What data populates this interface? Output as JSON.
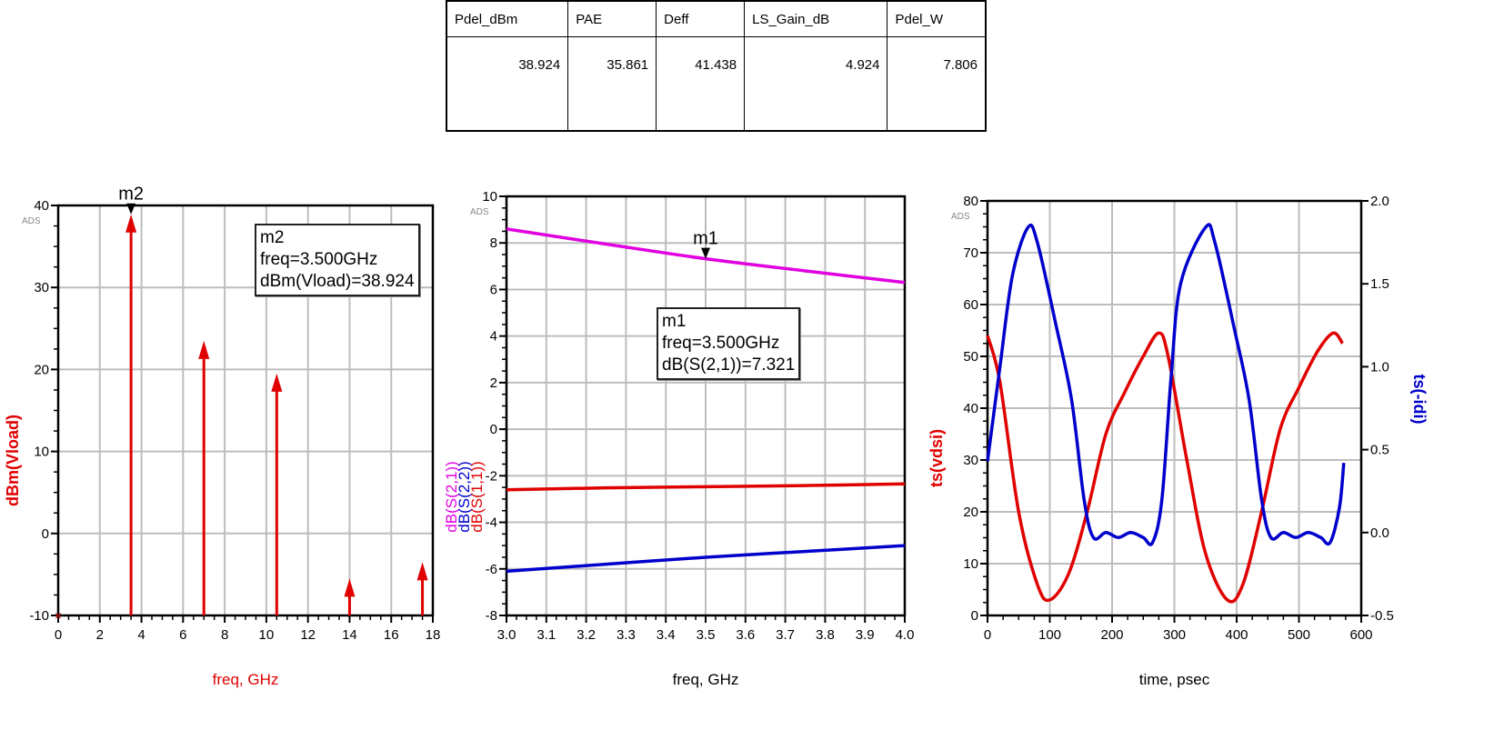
{
  "table": {
    "headers": [
      "Pdel_dBm",
      "PAE",
      "Deff",
      "LS_Gain_dB",
      "Pdel_W"
    ],
    "values": [
      "38.924",
      "35.861",
      "41.438",
      "4.924",
      "7.806"
    ]
  },
  "chart_data": [
    {
      "type": "stem",
      "watermark": "ADS",
      "xlabel": "freq, GHz",
      "ylabel": "dBm(Vload)",
      "label_color": "#e00000",
      "xlim": [
        0,
        18
      ],
      "ylim": [
        -10,
        40
      ],
      "xticks": [
        0,
        2,
        4,
        6,
        8,
        10,
        12,
        14,
        16,
        18
      ],
      "yticks": [
        -10,
        0,
        10,
        20,
        30,
        40
      ],
      "grid": true,
      "series": [
        {
          "color": "#e00000",
          "x": [
            0,
            3.5,
            7,
            10.5,
            14,
            17.5
          ],
          "y": [
            -10,
            38.924,
            23.5,
            19.5,
            -5.5,
            -3.5
          ]
        }
      ],
      "marker": {
        "name": "m2",
        "x": 3.5,
        "y": 38.924,
        "lines": [
          "m2",
          "freq=3.500GHz",
          "dBm(Vload)=38.924"
        ]
      }
    },
    {
      "type": "line",
      "watermark": "ADS",
      "xlabel": "freq, GHz",
      "ylabels": [
        {
          "text": "dB(S(2,1))",
          "color": "#e000e0"
        },
        {
          "text": "dB(S(2,2))",
          "color": "#0000cc"
        },
        {
          "text": "dB(S(1,1))",
          "color": "#e00000"
        }
      ],
      "xlim": [
        3.0,
        4.0
      ],
      "ylim": [
        -8,
        10
      ],
      "xticks": [
        "3.0",
        "3.1",
        "3.2",
        "3.3",
        "3.4",
        "3.5",
        "3.6",
        "3.7",
        "3.8",
        "3.9",
        "4.0"
      ],
      "yticks": [
        -8,
        -6,
        -4,
        -2,
        0,
        2,
        4,
        6,
        8,
        10
      ],
      "grid": true,
      "series": [
        {
          "name": "dB(S(2,1))",
          "color": "#e000e0",
          "x": [
            3.0,
            3.25,
            3.5,
            3.75,
            4.0
          ],
          "y": [
            8.6,
            7.95,
            7.321,
            6.8,
            6.3
          ]
        },
        {
          "name": "dB(S(2,2))",
          "color": "#0000cc",
          "x": [
            3.0,
            3.25,
            3.5,
            3.75,
            4.0
          ],
          "y": [
            -6.1,
            -5.8,
            -5.5,
            -5.25,
            -5.0
          ]
        },
        {
          "name": "dB(S(1,1))",
          "color": "#e00000",
          "x": [
            3.0,
            3.25,
            3.5,
            3.75,
            4.0
          ],
          "y": [
            -2.6,
            -2.52,
            -2.47,
            -2.42,
            -2.35
          ]
        }
      ],
      "marker": {
        "name": "m1",
        "x": 3.5,
        "y": 7.321,
        "lines": [
          "m1",
          "freq=3.500GHz",
          "dB(S(2,1))=7.321"
        ]
      }
    },
    {
      "type": "line",
      "watermark": "ADS",
      "xlabel": "time, psec",
      "ylabel": "ts(vdsi)",
      "ylabel_color": "#e00000",
      "y2label": "ts(-idi)",
      "y2label_color": "#0000cc",
      "xlim": [
        0,
        600
      ],
      "ylim": [
        0,
        80
      ],
      "y2lim": [
        -0.5,
        2.0
      ],
      "xticks": [
        0,
        100,
        200,
        300,
        400,
        500,
        600
      ],
      "yticks": [
        0,
        10,
        20,
        30,
        40,
        50,
        60,
        70,
        80
      ],
      "y2ticks": [
        "-0.5",
        "0.0",
        "0.5",
        "1.0",
        "1.5",
        "2.0"
      ],
      "grid": true,
      "series": [
        {
          "name": "ts(vdsi)",
          "axis": "left",
          "color": "#e00000",
          "x": [
            0,
            20,
            50,
            80,
            100,
            130,
            160,
            190,
            220,
            250,
            275,
            290,
            320,
            350,
            385,
            410,
            440,
            470,
            500,
            530,
            555,
            570
          ],
          "y": [
            54,
            45,
            20,
            6,
            3,
            8,
            20,
            35,
            43,
            50,
            54.5,
            50,
            30,
            12,
            3,
            6,
            20,
            36,
            44,
            51,
            54.5,
            52.5
          ]
        },
        {
          "name": "ts(-idi)",
          "axis": "right",
          "color": "#0000cc",
          "x": [
            0,
            20,
            40,
            65,
            80,
            110,
            135,
            155,
            170,
            190,
            210,
            230,
            250,
            265,
            280,
            295,
            310,
            350,
            365,
            395,
            420,
            440,
            455,
            475,
            495,
            515,
            535,
            550,
            565,
            572
          ],
          "y": [
            0.43,
            1.0,
            1.55,
            1.84,
            1.75,
            1.25,
            0.8,
            0.2,
            -0.03,
            0.0,
            -0.03,
            0.0,
            -0.03,
            -0.06,
            0.2,
            0.95,
            1.5,
            1.84,
            1.75,
            1.25,
            0.8,
            0.2,
            -0.03,
            0.0,
            -0.03,
            0.0,
            -0.03,
            -0.06,
            0.15,
            0.42
          ]
        }
      ]
    }
  ]
}
